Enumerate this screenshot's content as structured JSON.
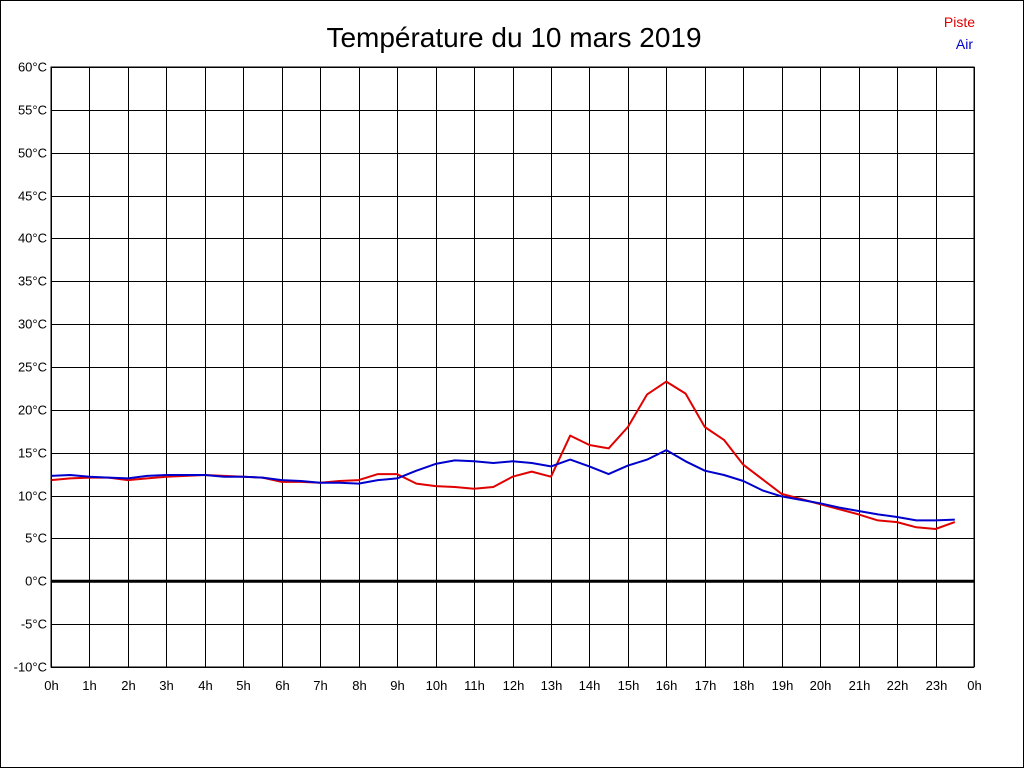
{
  "chart_data": {
    "type": "line",
    "title": "Température du 10 mars 2019",
    "xlabel": "",
    "ylabel": "",
    "x_tick_labels": [
      "0h",
      "1h",
      "2h",
      "3h",
      "4h",
      "5h",
      "6h",
      "7h",
      "8h",
      "9h",
      "10h",
      "11h",
      "12h",
      "13h",
      "14h",
      "15h",
      "16h",
      "17h",
      "18h",
      "19h",
      "20h",
      "21h",
      "22h",
      "23h",
      "0h"
    ],
    "y_tick_labels": [
      "60°C",
      "55°C",
      "50°C",
      "45°C",
      "40°C",
      "35°C",
      "30°C",
      "25°C",
      "20°C",
      "15°C",
      "10°C",
      "5°C",
      "0°C",
      "-5°C",
      "-10°C"
    ],
    "xlim": [
      0,
      24
    ],
    "ylim": [
      -10,
      60
    ],
    "grid": true,
    "legend_placement": "top-right",
    "zero_line": true,
    "colors": {
      "piste": "#e00000",
      "air": "#0000cc",
      "grid": "#000000",
      "zero_line": "#000000"
    },
    "series": [
      {
        "name": "Piste",
        "color": "#e00000",
        "x": [
          0,
          0.5,
          1,
          1.5,
          2,
          2.5,
          3,
          3.5,
          4,
          4.5,
          5,
          5.5,
          6,
          6.5,
          7,
          7.5,
          8,
          8.5,
          9,
          9.5,
          10,
          10.5,
          11,
          11.5,
          12,
          12.5,
          13,
          13.5,
          14,
          14.5,
          15,
          15.5,
          16,
          16.5,
          17,
          17.5,
          18,
          18.5,
          19,
          19.5,
          20,
          20.5,
          21,
          21.5,
          22,
          22.5,
          23,
          23.5
        ],
        "values": [
          11.8,
          12.0,
          12.1,
          12.1,
          11.8,
          12.0,
          12.2,
          12.3,
          12.4,
          12.3,
          12.2,
          12.1,
          11.6,
          11.6,
          11.5,
          11.7,
          11.8,
          12.5,
          12.5,
          11.4,
          11.1,
          11.0,
          10.8,
          11.0,
          12.2,
          12.8,
          12.2,
          17.0,
          15.9,
          15.5,
          18.0,
          21.8,
          23.3,
          21.9,
          18.0,
          16.5,
          13.6,
          11.9,
          10.2,
          9.6,
          9.0,
          8.4,
          7.8,
          7.1,
          6.9,
          6.3,
          6.1,
          6.9
        ]
      },
      {
        "name": "Air",
        "color": "#0000cc",
        "x": [
          0,
          0.5,
          1,
          1.5,
          2,
          2.5,
          3,
          3.5,
          4,
          4.5,
          5,
          5.5,
          6,
          6.5,
          7,
          7.5,
          8,
          8.5,
          9,
          9.5,
          10,
          10.5,
          11,
          11.5,
          12,
          12.5,
          13,
          13.5,
          14,
          14.5,
          15,
          15.5,
          16,
          16.5,
          17,
          17.5,
          18,
          18.5,
          19,
          19.5,
          20,
          20.5,
          21,
          21.5,
          22,
          22.5,
          23,
          23.5
        ],
        "values": [
          12.3,
          12.4,
          12.2,
          12.1,
          12.0,
          12.3,
          12.4,
          12.4,
          12.4,
          12.2,
          12.2,
          12.1,
          11.8,
          11.7,
          11.5,
          11.5,
          11.4,
          11.8,
          12.0,
          12.9,
          13.7,
          14.1,
          14.0,
          13.8,
          14.0,
          13.8,
          13.4,
          14.2,
          13.4,
          12.5,
          13.5,
          14.2,
          15.3,
          14.0,
          12.9,
          12.4,
          11.7,
          10.6,
          9.9,
          9.5,
          9.1,
          8.6,
          8.2,
          7.8,
          7.5,
          7.1,
          7.1,
          7.2
        ]
      }
    ]
  }
}
